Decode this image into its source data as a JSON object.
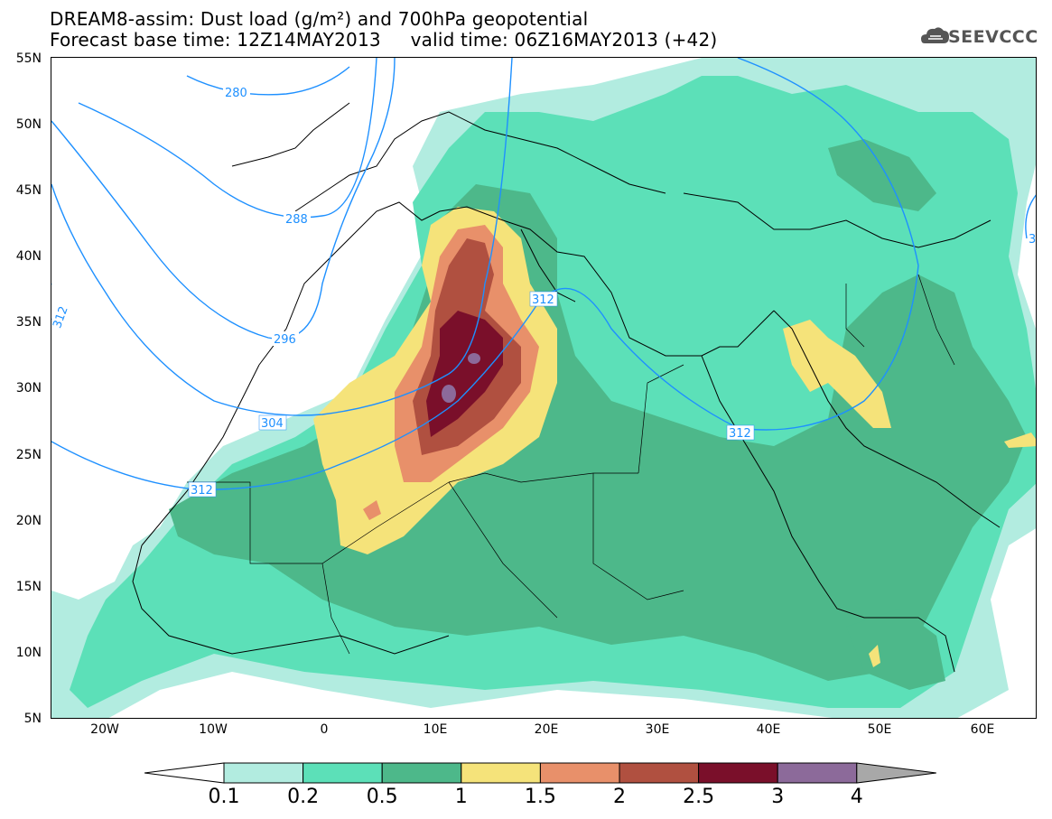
{
  "title_line1": "DREAM8-assim: Dust load (g/m²) and 700hPa geopotential",
  "title_line2": "Forecast base time: 12Z14MAY2013     valid time: 06Z16MAY2013 (+42)",
  "logo": {
    "text": "SEEVCCC",
    "icon": "cloud-icon"
  },
  "map": {
    "lat_labels": [
      "55N",
      "50N",
      "45N",
      "40N",
      "35N",
      "30N",
      "25N",
      "20N",
      "15N",
      "10N",
      "5N"
    ],
    "lon_labels": [
      "20W",
      "10W",
      "0",
      "10E",
      "20E",
      "30E",
      "40E",
      "50E",
      "60E"
    ],
    "contour_labels": [
      "280",
      "288",
      "296",
      "304",
      "312",
      "312",
      "312",
      "312",
      "3"
    ],
    "colors": {
      "ocean_land": "#ffffff",
      "coast": "#000000",
      "contour": "#1e90ff"
    }
  },
  "colorbar": {
    "colors": [
      "#ffffff",
      "#b2ece0",
      "#5ce0b8",
      "#4db88a",
      "#f5e37a",
      "#e8906a",
      "#b05040",
      "#7a0f2a",
      "#8c6a9a",
      "#a8a8a8"
    ],
    "labels": [
      "0.1",
      "0.2",
      "0.5",
      "1",
      "1.5",
      "2",
      "2.5",
      "3",
      "4"
    ]
  }
}
